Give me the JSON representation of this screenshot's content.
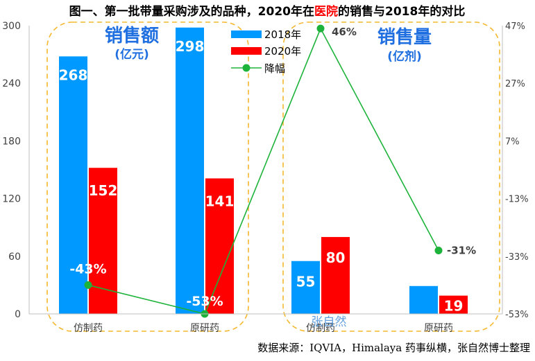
{
  "chart_data": {
    "type": "bar+line",
    "title": {
      "prefix": "图一、第一批带量采购涉及的品种，2020年在",
      "highlight": "医院",
      "suffix": "的销售与2018年的对比"
    },
    "categories": [
      "仿制药",
      "原研药",
      "仿制药",
      "原研药"
    ],
    "groups": [
      {
        "label": "销售额",
        "unit": "(亿元)",
        "categories": [
          0,
          1
        ]
      },
      {
        "label": "销售量",
        "unit": "(亿剂)",
        "categories": [
          2,
          3
        ]
      }
    ],
    "series": [
      {
        "name": "2018年",
        "type": "bar",
        "color": "#0099ff",
        "values": [
          268,
          298,
          55,
          29
        ],
        "labels": [
          "268",
          "298",
          "55",
          ""
        ]
      },
      {
        "name": "2020年",
        "type": "bar",
        "color": "#ff0000",
        "values": [
          152,
          141,
          80,
          19
        ],
        "labels": [
          "152",
          "141",
          "80",
          "19"
        ]
      },
      {
        "name": "降幅",
        "type": "line",
        "axis": "right",
        "color": "#1db33a",
        "values": [
          -43,
          -53,
          46,
          -31
        ],
        "labels": [
          "-43%",
          "-53%",
          "46%",
          "-31%"
        ]
      }
    ],
    "left_axis": {
      "min": 0,
      "max": 300,
      "ticks": [
        0,
        60,
        120,
        180,
        240,
        300
      ]
    },
    "right_axis": {
      "min": -53,
      "max": 47,
      "ticks": [
        -53,
        -33,
        -13,
        7,
        27,
        47
      ],
      "tick_labels": [
        "-53%",
        "-33%",
        "-13%",
        "7%",
        "27%",
        "47%"
      ]
    },
    "legend": "top-center",
    "watermark": "张自然",
    "source": "数据来源：IQVIA，Himalaya 药事纵横，张自然博士整理"
  }
}
